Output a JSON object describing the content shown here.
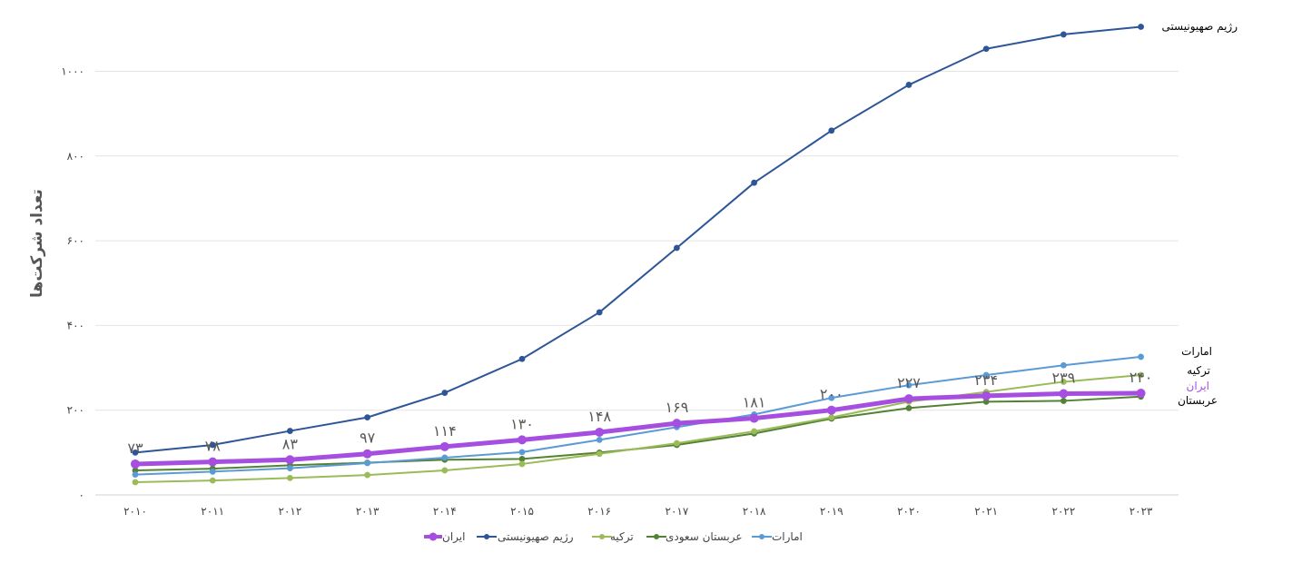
{
  "chart_data": {
    "type": "line",
    "title": "",
    "ylabel": "تعداد شرکت‌ها",
    "xlabel": "",
    "x": [
      "۲۰۱۰",
      "۲۰۱۱",
      "۲۰۱۲",
      "۲۰۱۳",
      "۲۰۱۴",
      "۲۰۱۵",
      "۲۰۱۶",
      "۲۰۱۷",
      "۲۰۱۸",
      "۲۰۱۹",
      "۲۰۲۰",
      "۲۰۲۱",
      "۲۰۲۲",
      "۲۰۲۳"
    ],
    "yticks": [
      {
        "value": 0,
        "label": "۰"
      },
      {
        "value": 200,
        "label": "۲۰۰"
      },
      {
        "value": 400,
        "label": "۴۰۰"
      },
      {
        "value": 600,
        "label": "۶۰۰"
      },
      {
        "value": 800,
        "label": "۸۰۰"
      },
      {
        "value": 1000,
        "label": "۱۰۰۰"
      }
    ],
    "ylim": [
      0,
      1100
    ],
    "grid": true,
    "legend_position": "bottom",
    "series": [
      {
        "key": "israel",
        "name": "رژیم صهیونیستی",
        "color": "#2e5597",
        "width": 2,
        "values": [
          100,
          118,
          151,
          183,
          241,
          321,
          431,
          583,
          737,
          860,
          968,
          1053,
          1087,
          1105
        ]
      },
      {
        "key": "uae",
        "name": "امارات",
        "color": "#5b9bd5",
        "width": 2,
        "values": [
          48,
          55,
          63,
          75,
          88,
          101,
          130,
          160,
          190,
          229,
          259,
          283,
          306,
          326
        ]
      },
      {
        "key": "turkey",
        "name": "ترکیه",
        "color": "#9bbb59",
        "width": 2,
        "values": [
          30,
          34,
          40,
          47,
          58,
          73,
          97,
          122,
          150,
          183,
          220,
          243,
          267,
          283
        ]
      },
      {
        "key": "saudi",
        "name": "عربستان سعودی",
        "color": "#548235",
        "width": 2,
        "values": [
          58,
          62,
          70,
          76,
          83,
          85,
          100,
          118,
          145,
          180,
          205,
          220,
          222,
          232
        ]
      },
      {
        "key": "iran",
        "name": "ایران",
        "color": "#a64ee0",
        "width": 5,
        "values": [
          73,
          78,
          83,
          97,
          114,
          130,
          148,
          169,
          181,
          200,
          227,
          234,
          239,
          240
        ],
        "data_labels": [
          "۷۳",
          "۷۸",
          "۸۳",
          "۹۷",
          "۱۱۴",
          "۱۳۰",
          "۱۴۸",
          "۱۶۹",
          "۱۸۱",
          "۲۰۰",
          "۲۲۷",
          "۲۳۴",
          "۲۳۹",
          "۲۴۰"
        ]
      }
    ],
    "legend_order": [
      "iran",
      "israel",
      "turkey",
      "saudi",
      "uae"
    ],
    "end_labels": [
      {
        "text": "رژیم صهیونیستی",
        "color": "#000000"
      },
      {
        "text": "امارات",
        "color": "#000000"
      },
      {
        "text": "ترکیه",
        "color": "#000000"
      },
      {
        "text": "ایران",
        "color": "#a64ee0"
      },
      {
        "text": "عربستان",
        "color": "#000000"
      }
    ]
  }
}
